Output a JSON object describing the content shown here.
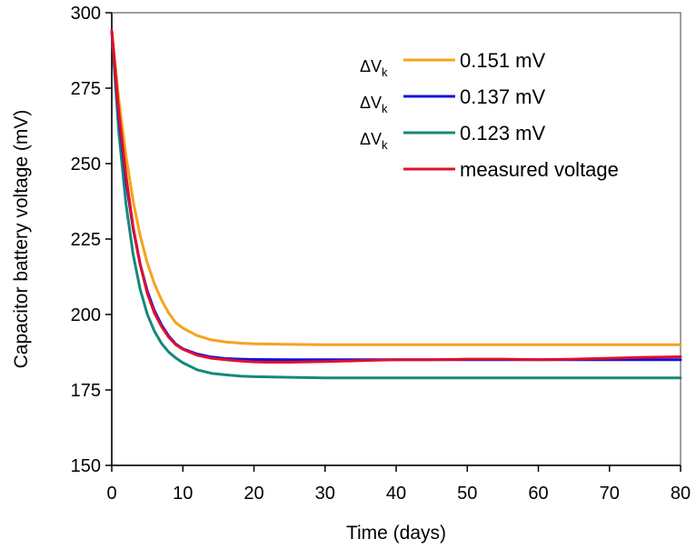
{
  "chart_data": {
    "type": "line",
    "title": "",
    "xlabel": "Time (days)",
    "ylabel": "Capacitor battery voltage (mV)",
    "xlim": [
      0,
      80
    ],
    "ylim": [
      150,
      300
    ],
    "xticks": [
      0,
      10,
      20,
      30,
      40,
      50,
      60,
      70,
      80
    ],
    "yticks": [
      150,
      175,
      200,
      225,
      250,
      275,
      300
    ],
    "grid": false,
    "legend_position": "top-right",
    "legend_prefix": "ΔV",
    "legend_prefix_sub": "k",
    "series": [
      {
        "name": "0.151 mV",
        "color": "#f5a31a",
        "has_prefix": true,
        "x": [
          0,
          1,
          2,
          3,
          4,
          5,
          6,
          7,
          8,
          9,
          10,
          12,
          14,
          16,
          18,
          20,
          25,
          30,
          40,
          50,
          60,
          70,
          80
        ],
        "y": [
          294,
          271.2,
          252.4,
          237.7,
          226.1,
          217.1,
          210.2,
          204.8,
          200.5,
          197.3,
          195.5,
          193.0,
          191.6,
          190.9,
          190.5,
          190.3,
          190.1,
          190.0,
          190.0,
          190.0,
          190.0,
          190.0,
          190.0
        ]
      },
      {
        "name": "0.137 mV",
        "color": "#1010e0",
        "has_prefix": true,
        "x": [
          0,
          1,
          2,
          3,
          4,
          5,
          6,
          7,
          8,
          9,
          10,
          12,
          14,
          16,
          18,
          20,
          25,
          30,
          40,
          50,
          60,
          70,
          80
        ],
        "y": [
          294,
          265.5,
          244.3,
          228.5,
          216.6,
          207.8,
          201.3,
          196.5,
          192.9,
          190.2,
          188.6,
          186.9,
          185.9,
          185.4,
          185.2,
          185.1,
          185.0,
          185.0,
          185.0,
          185.0,
          185.0,
          185.0,
          185.0
        ]
      },
      {
        "name": "0.123 mV",
        "color": "#14897a",
        "has_prefix": true,
        "x": [
          0,
          1,
          2,
          3,
          4,
          5,
          6,
          7,
          8,
          9,
          10,
          12,
          14,
          16,
          18,
          20,
          25,
          30,
          40,
          50,
          60,
          70,
          80
        ],
        "y": [
          294,
          260.2,
          236.5,
          219.9,
          208.3,
          200.1,
          194.5,
          190.4,
          187.6,
          185.6,
          184.0,
          181.7,
          180.5,
          180.0,
          179.6,
          179.4,
          179.2,
          179.0,
          179.0,
          179.0,
          179.0,
          179.0,
          179.0
        ]
      },
      {
        "name": "measured voltage",
        "color": "#e0102a",
        "has_prefix": false,
        "x": [
          0,
          1,
          2,
          3,
          4,
          5,
          6,
          7,
          8,
          9,
          10,
          12,
          14,
          16,
          18,
          20,
          22,
          25,
          30,
          35,
          40,
          45,
          50,
          55,
          60,
          65,
          70,
          75,
          80
        ],
        "y": [
          294,
          267.0,
          246.0,
          229.0,
          216.5,
          207.0,
          200.5,
          196.0,
          192.5,
          190.0,
          188.5,
          186.5,
          185.5,
          185.0,
          184.6,
          184.3,
          184.2,
          184.2,
          184.4,
          184.7,
          185.0,
          185.0,
          185.2,
          185.2,
          185.0,
          185.2,
          185.5,
          185.8,
          186.0
        ]
      }
    ]
  }
}
